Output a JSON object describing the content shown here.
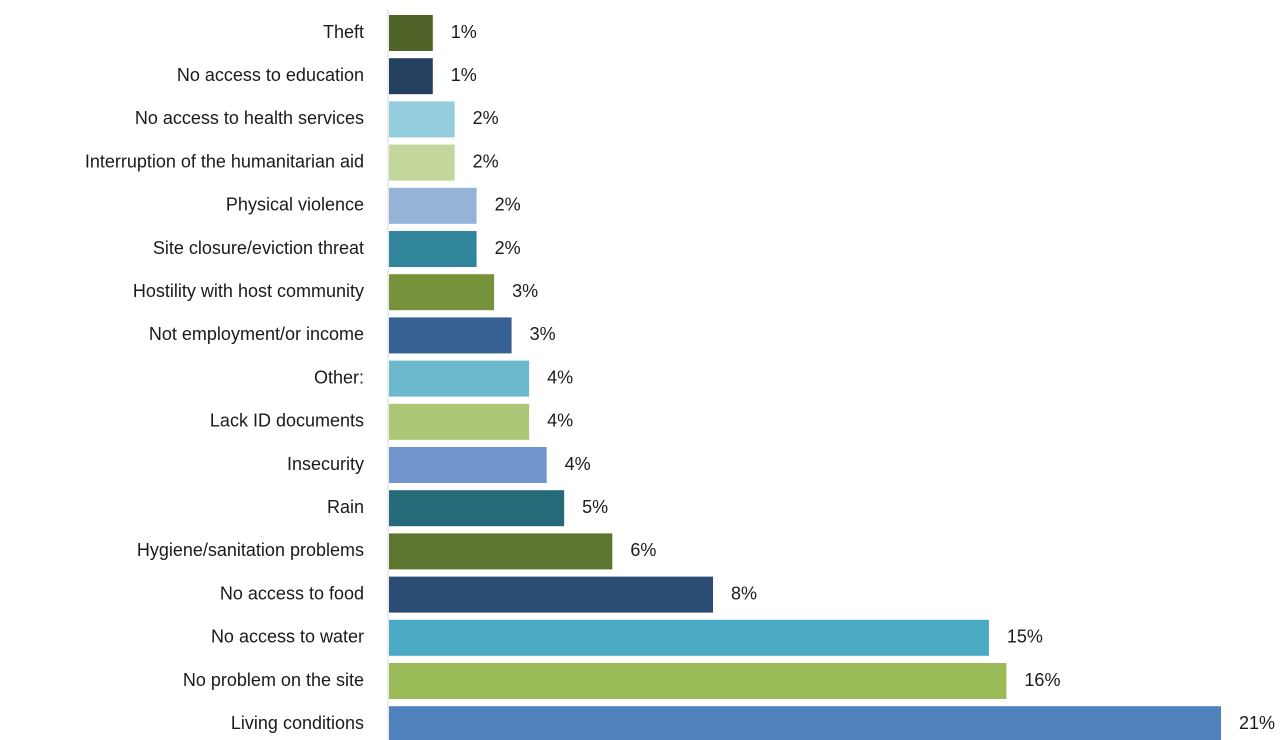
{
  "chart_data": {
    "type": "bar",
    "orientation": "horizontal",
    "categories": [
      "Theft",
      "No access to education",
      "No access to health services",
      "Interruption of the humanitarian aid",
      "Physical violence",
      "Site closure/eviction threat",
      "Hostility with host community",
      "Not employment/or income",
      "Other:",
      "Lack ID documents",
      "Insecurity",
      "Rain",
      "Hygiene/sanitation problems",
      "No access to food",
      "No access to water",
      "No problem on the site",
      "Living conditions"
    ],
    "values": [
      1.0,
      1.0,
      1.5,
      1.5,
      2.0,
      2.0,
      2.4,
      2.8,
      3.2,
      3.2,
      3.6,
      4.0,
      5.1,
      7.4,
      13.7,
      14.1,
      19.0
    ],
    "value_labels": [
      "1%",
      "1%",
      "2%",
      "2%",
      "2%",
      "2%",
      "3%",
      "3%",
      "4%",
      "4%",
      "4%",
      "5%",
      "6%",
      "8%",
      "15%",
      "16%",
      "21%"
    ],
    "colors": [
      "#4f6228",
      "#243f60",
      "#93cddd",
      "#c3d69b",
      "#95b3d7",
      "#31869b",
      "#76933c",
      "#366092",
      "#6cb8cc",
      "#acc776",
      "#7094cc",
      "#256a78",
      "#5e7530",
      "#2c4d73",
      "#4aa9c3",
      "#9bbb59",
      "#4f81bd"
    ],
    "xlim": [
      0,
      19.0
    ],
    "title": "",
    "xlabel": "",
    "ylabel": "",
    "grid": false,
    "legend": "none"
  }
}
